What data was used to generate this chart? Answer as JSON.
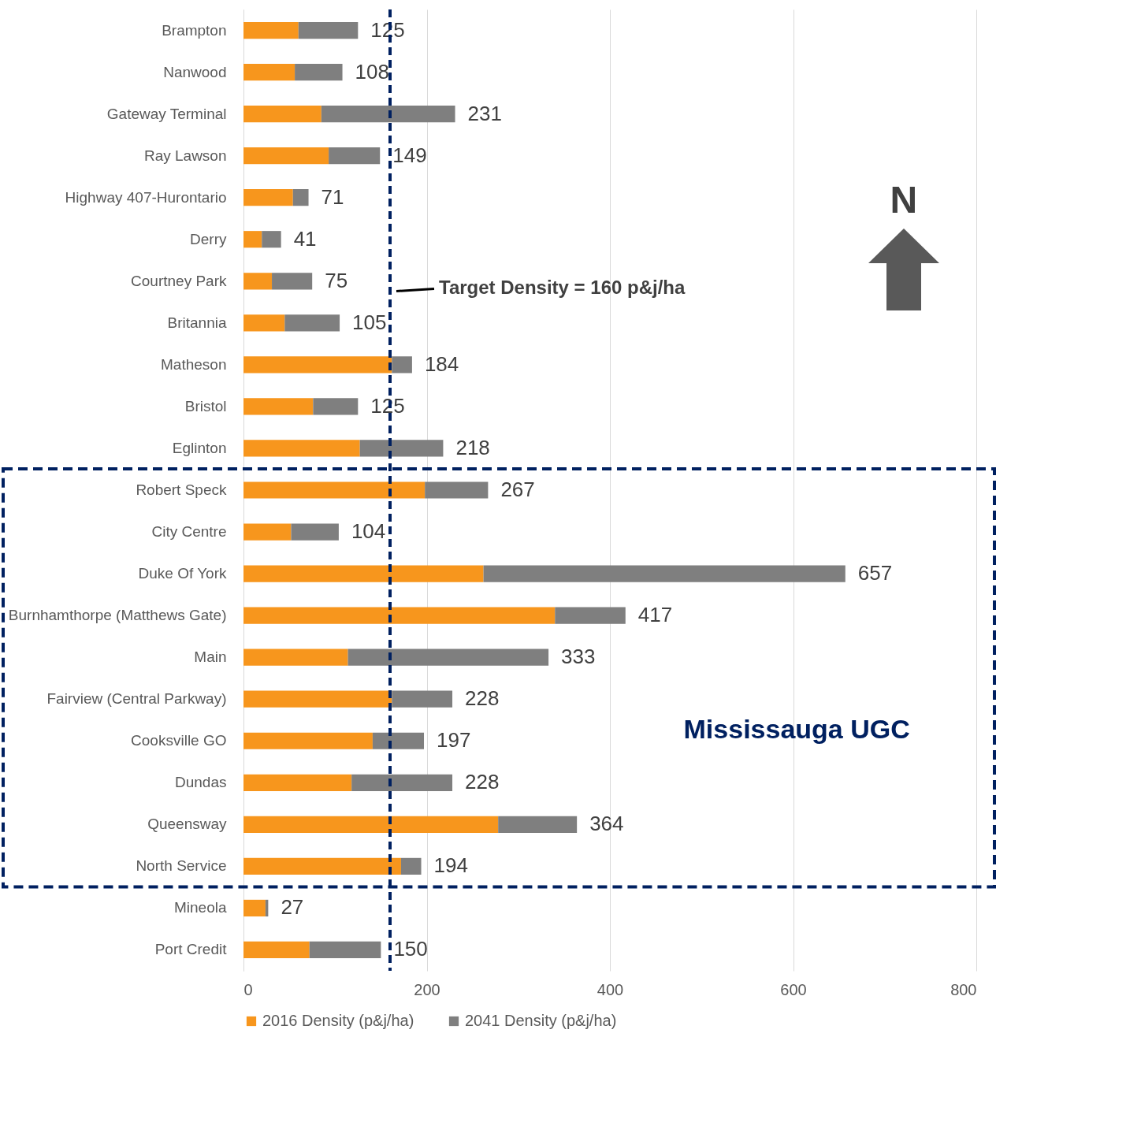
{
  "chart_data": {
    "type": "bar",
    "orientation": "horizontal",
    "stacked": true,
    "categories": [
      "Brampton",
      "Nanwood",
      "Gateway Terminal",
      "Ray Lawson",
      "Highway 407-Hurontario",
      "Derry",
      "Courtney Park",
      "Britannia",
      "Matheson",
      "Bristol",
      "Eglinton",
      "Robert Speck",
      "City Centre",
      "Duke Of York",
      "Burnhamthorpe (Matthews Gate)",
      "Main",
      "Fairview (Central Parkway)",
      "Cooksville GO",
      "Dundas",
      "Queensway",
      "North Service",
      "Mineola",
      "Port Credit"
    ],
    "series": [
      {
        "name": "2016 Density (p&j/ha)",
        "color": "#f7961d",
        "values": [
          60,
          56,
          85,
          93,
          54,
          20,
          31,
          45,
          162,
          76,
          127,
          198,
          52,
          262,
          340,
          114,
          162,
          141,
          118,
          278,
          172,
          24,
          72
        ]
      },
      {
        "name": "2041 Density (p&j/ha)",
        "color": "#7f7f7f",
        "values": [
          65,
          52,
          146,
          56,
          17,
          21,
          44,
          60,
          22,
          49,
          91,
          69,
          52,
          395,
          77,
          219,
          66,
          56,
          110,
          86,
          22,
          3,
          78
        ]
      }
    ],
    "totals": [
      "125",
      "108",
      "231",
      "149",
      "71",
      "41",
      "75",
      "105",
      "184",
      "125",
      "218",
      "267",
      "104",
      "657",
      "417",
      "333",
      "228",
      "197",
      "228",
      "364",
      "194",
      "27",
      "150"
    ],
    "xlim": [
      0,
      800
    ],
    "xticks": [
      0,
      200,
      400,
      600,
      800
    ],
    "grid": "x",
    "legend": "bottom",
    "ref_lines": [
      {
        "axis": "x",
        "value": 160,
        "label": "Target Density = 160 p&j/ha",
        "color": "#002060",
        "line_style": "dashed"
      }
    ],
    "annotations": [
      "N",
      "Mississauga UGC"
    ]
  }
}
